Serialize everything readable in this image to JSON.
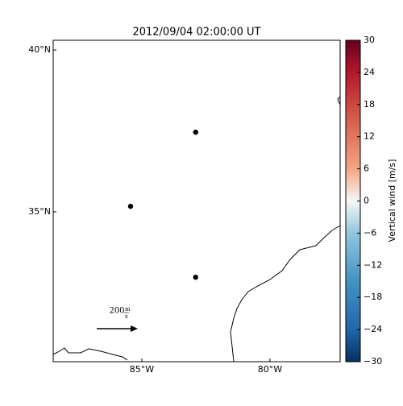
{
  "chart_data": {
    "type": "map",
    "title": "2012/09/04 02:00:00 UT",
    "xlim": [
      -88.46,
      -77.26
    ],
    "ylim": [
      30.37,
      40.3
    ],
    "xticks": [
      {
        "value": -85,
        "label": "85°W"
      },
      {
        "value": -80,
        "label": "80°W"
      }
    ],
    "yticks": [
      {
        "value": 35,
        "label": "35°N"
      },
      {
        "value": 40,
        "label": "40°N"
      }
    ],
    "points": {
      "x": [
        -82.9,
        -85.44,
        -82.9
      ],
      "y": [
        37.46,
        35.17,
        32.98
      ],
      "color": "#000000"
    },
    "key": {
      "value": 200,
      "unit_top": "m",
      "unit_bottom": "s"
    },
    "colorbar": {
      "label": "Vertical wind [m/s]",
      "clim": [
        -30,
        30
      ],
      "ticks": [
        {
          "value": -30,
          "label": "−30"
        },
        {
          "value": -24,
          "label": "−24"
        },
        {
          "value": -18,
          "label": "−18"
        },
        {
          "value": -12,
          "label": "−12"
        },
        {
          "value": -6,
          "label": "−6"
        },
        0,
        6,
        12,
        18,
        24,
        30
      ]
    }
  }
}
